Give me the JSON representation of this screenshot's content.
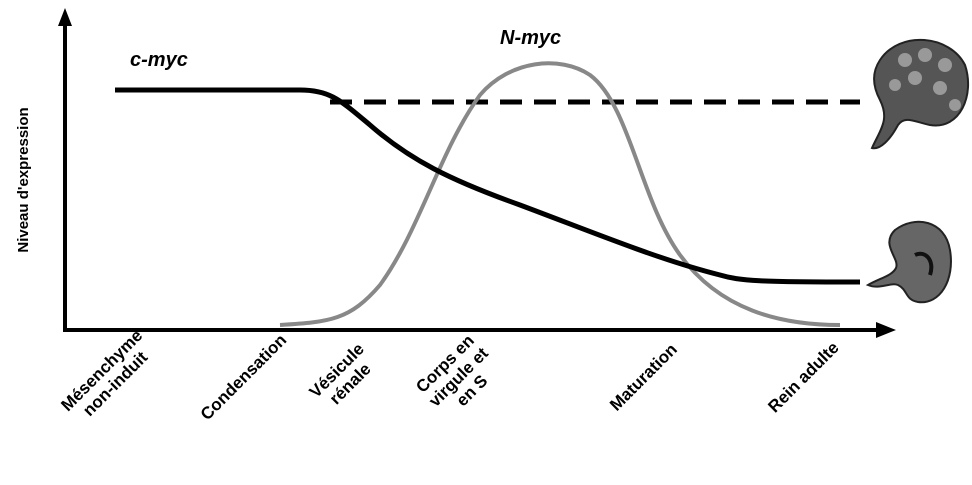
{
  "y_axis_label": "Niveau d'expression",
  "curves": {
    "c_myc": "c-myc",
    "n_myc": "N-myc"
  },
  "stages": [
    [
      "Mésenchyme",
      "non-induit"
    ],
    [
      "Condensation"
    ],
    [
      "Vésicule",
      "rénale"
    ],
    [
      "Corps en",
      "virgule et",
      "en S"
    ],
    [
      "Maturation"
    ],
    [
      "Rein adulte"
    ]
  ]
}
